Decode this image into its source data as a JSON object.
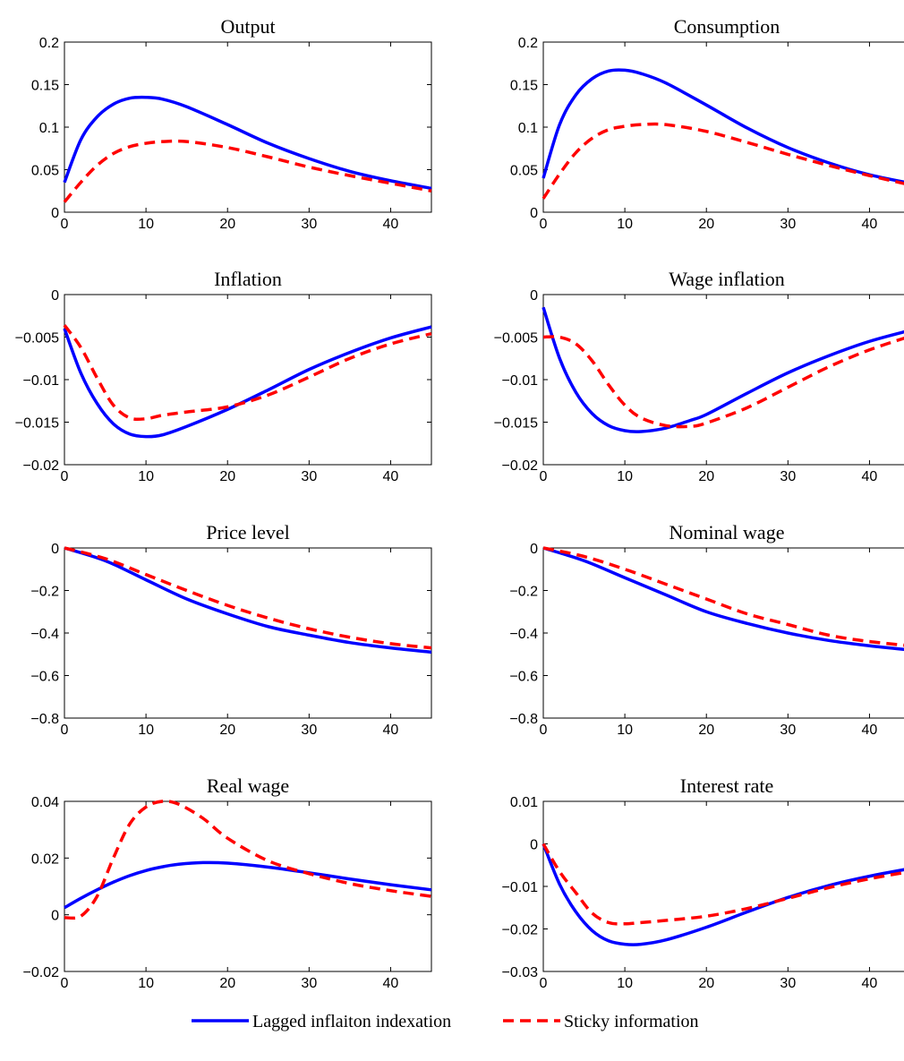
{
  "legend": {
    "placement": "bottom-center",
    "items": [
      {
        "label": "Lagged inflaiton indexation",
        "color": "#0000ff",
        "style": "solid"
      },
      {
        "label": "Sticky information",
        "color": "#ff0000",
        "style": "dashed"
      }
    ]
  },
  "chart_data": [
    {
      "type": "line",
      "title": "Output",
      "xlim": [
        0,
        45
      ],
      "ylim": [
        0,
        0.2
      ],
      "xticks": [
        0,
        10,
        20,
        30,
        40
      ],
      "xtick_labels": [
        "0",
        "10",
        "20",
        "30",
        "40"
      ],
      "yticks": [
        0,
        0.05,
        0.1,
        0.15,
        0.2
      ],
      "ytick_labels": [
        "0",
        "0.05",
        "0.1",
        "0.15",
        "0.2"
      ],
      "grid": false,
      "x": [
        0,
        2,
        4,
        6,
        8,
        10,
        12,
        15,
        20,
        25,
        30,
        35,
        40,
        45
      ],
      "series": [
        {
          "name": "Lagged inflaiton indexation",
          "values": [
            0.035,
            0.085,
            0.112,
            0.127,
            0.134,
            0.135,
            0.133,
            0.124,
            0.103,
            0.081,
            0.063,
            0.048,
            0.037,
            0.028
          ]
        },
        {
          "name": "Sticky information",
          "values": [
            0.012,
            0.035,
            0.055,
            0.069,
            0.077,
            0.081,
            0.083,
            0.083,
            0.076,
            0.065,
            0.053,
            0.043,
            0.034,
            0.025
          ]
        }
      ]
    },
    {
      "type": "line",
      "title": "Consumption",
      "xlim": [
        0,
        45
      ],
      "ylim": [
        0,
        0.2
      ],
      "xticks": [
        0,
        10,
        20,
        30,
        40
      ],
      "xtick_labels": [
        "0",
        "10",
        "20",
        "30",
        "40"
      ],
      "yticks": [
        0,
        0.05,
        0.1,
        0.15,
        0.2
      ],
      "ytick_labels": [
        "0",
        "0.05",
        "0.1",
        "0.15",
        "0.2"
      ],
      "grid": false,
      "x": [
        0,
        2,
        4,
        6,
        8,
        10,
        12,
        15,
        20,
        25,
        30,
        35,
        40,
        45
      ],
      "series": [
        {
          "name": "Lagged inflaiton indexation",
          "values": [
            0.04,
            0.103,
            0.138,
            0.157,
            0.166,
            0.167,
            0.163,
            0.152,
            0.126,
            0.099,
            0.076,
            0.058,
            0.044,
            0.034
          ]
        },
        {
          "name": "Sticky information",
          "values": [
            0.016,
            0.045,
            0.07,
            0.087,
            0.097,
            0.101,
            0.103,
            0.103,
            0.095,
            0.082,
            0.068,
            0.055,
            0.043,
            0.032
          ]
        }
      ]
    },
    {
      "type": "line",
      "title": "Inflation",
      "xlim": [
        0,
        45
      ],
      "ylim": [
        -0.02,
        0
      ],
      "xticks": [
        0,
        10,
        20,
        30,
        40
      ],
      "xtick_labels": [
        "0",
        "10",
        "20",
        "30",
        "40"
      ],
      "yticks": [
        -0.02,
        -0.015,
        -0.01,
        -0.005,
        0
      ],
      "ytick_labels": [
        "−0.02",
        "−0.015",
        "−0.01",
        "−0.005",
        "0"
      ],
      "grid": false,
      "x": [
        0,
        2,
        4,
        6,
        8,
        10,
        12,
        15,
        20,
        25,
        30,
        35,
        40,
        45
      ],
      "series": [
        {
          "name": "Lagged inflaiton indexation",
          "values": [
            -0.004,
            -0.0092,
            -0.0128,
            -0.0152,
            -0.0164,
            -0.0167,
            -0.0165,
            -0.0155,
            -0.0135,
            -0.0112,
            -0.0088,
            -0.0068,
            -0.0051,
            -0.0038
          ]
        },
        {
          "name": "Sticky information",
          "values": [
            -0.0036,
            -0.0062,
            -0.0098,
            -0.013,
            -0.0145,
            -0.0146,
            -0.0142,
            -0.0138,
            -0.0132,
            -0.0118,
            -0.0097,
            -0.0075,
            -0.0058,
            -0.0046
          ]
        }
      ]
    },
    {
      "type": "line",
      "title": "Wage inflation",
      "xlim": [
        0,
        45
      ],
      "ylim": [
        -0.02,
        0
      ],
      "xticks": [
        0,
        10,
        20,
        30,
        40
      ],
      "xtick_labels": [
        "0",
        "10",
        "20",
        "30",
        "40"
      ],
      "yticks": [
        -0.02,
        -0.015,
        -0.01,
        -0.005,
        0
      ],
      "ytick_labels": [
        "−0.02",
        "−0.015",
        "−0.01",
        "−0.005",
        "0"
      ],
      "grid": false,
      "x": [
        0,
        2,
        4,
        6,
        8,
        10,
        12,
        15,
        18,
        20,
        25,
        30,
        35,
        40,
        45
      ],
      "series": [
        {
          "name": "Lagged inflaiton indexation",
          "values": [
            -0.0015,
            -0.0075,
            -0.0115,
            -0.014,
            -0.0154,
            -0.016,
            -0.0161,
            -0.0157,
            -0.0148,
            -0.0141,
            -0.0116,
            -0.0092,
            -0.0072,
            -0.0055,
            -0.0042
          ]
        },
        {
          "name": "Sticky information",
          "values": [
            -0.005,
            -0.005,
            -0.0058,
            -0.0078,
            -0.0106,
            -0.013,
            -0.0145,
            -0.0154,
            -0.0155,
            -0.0151,
            -0.0133,
            -0.0109,
            -0.0085,
            -0.0065,
            -0.0049
          ]
        }
      ]
    },
    {
      "type": "line",
      "title": "Price level",
      "xlim": [
        0,
        45
      ],
      "ylim": [
        -0.8,
        0
      ],
      "xticks": [
        0,
        10,
        20,
        30,
        40
      ],
      "xtick_labels": [
        "0",
        "10",
        "20",
        "30",
        "40"
      ],
      "yticks": [
        -0.8,
        -0.6,
        -0.4,
        -0.2,
        0
      ],
      "ytick_labels": [
        "−0.8",
        "−0.6",
        "−0.4",
        "−0.2",
        "0"
      ],
      "grid": false,
      "x": [
        0,
        5,
        10,
        15,
        20,
        25,
        30,
        35,
        40,
        45
      ],
      "series": [
        {
          "name": "Lagged inflaiton indexation",
          "values": [
            0,
            -0.06,
            -0.15,
            -0.24,
            -0.31,
            -0.37,
            -0.41,
            -0.445,
            -0.47,
            -0.49
          ]
        },
        {
          "name": "Sticky information",
          "values": [
            0,
            -0.05,
            -0.125,
            -0.2,
            -0.27,
            -0.33,
            -0.38,
            -0.42,
            -0.45,
            -0.47
          ]
        }
      ]
    },
    {
      "type": "line",
      "title": "Nominal wage",
      "xlim": [
        0,
        45
      ],
      "ylim": [
        -0.8,
        0
      ],
      "xticks": [
        0,
        10,
        20,
        30,
        40
      ],
      "xtick_labels": [
        "0",
        "10",
        "20",
        "30",
        "40"
      ],
      "yticks": [
        -0.8,
        -0.6,
        -0.4,
        -0.2,
        0
      ],
      "ytick_labels": [
        "−0.8",
        "−0.6",
        "−0.4",
        "−0.2",
        "0"
      ],
      "grid": false,
      "x": [
        0,
        5,
        10,
        15,
        20,
        25,
        30,
        35,
        40,
        45
      ],
      "series": [
        {
          "name": "Lagged inflaiton indexation",
          "values": [
            0,
            -0.06,
            -0.14,
            -0.22,
            -0.3,
            -0.355,
            -0.4,
            -0.435,
            -0.46,
            -0.48
          ]
        },
        {
          "name": "Sticky information",
          "values": [
            0,
            -0.04,
            -0.1,
            -0.17,
            -0.24,
            -0.31,
            -0.36,
            -0.41,
            -0.44,
            -0.46
          ]
        }
      ]
    },
    {
      "type": "line",
      "title": "Real wage",
      "xlim": [
        0,
        45
      ],
      "ylim": [
        -0.02,
        0.04
      ],
      "xticks": [
        0,
        10,
        20,
        30,
        40
      ],
      "xtick_labels": [
        "0",
        "10",
        "20",
        "30",
        "40"
      ],
      "yticks": [
        -0.02,
        0,
        0.02,
        0.04
      ],
      "ytick_labels": [
        "−0.02",
        "0",
        "0.02",
        "0.04"
      ],
      "grid": false,
      "x": [
        0,
        2,
        4,
        6,
        8,
        10,
        12,
        14,
        17,
        20,
        25,
        30,
        35,
        40,
        45
      ],
      "series": [
        {
          "name": "Lagged inflaiton indexation",
          "values": [
            0.0025,
            0.0058,
            0.0088,
            0.0115,
            0.0138,
            0.0156,
            0.0169,
            0.0178,
            0.0184,
            0.0182,
            0.0168,
            0.0148,
            0.0126,
            0.0106,
            0.0088
          ]
        },
        {
          "name": "Sticky information",
          "values": [
            -0.001,
            -0.0005,
            0.0065,
            0.02,
            0.032,
            0.038,
            0.04,
            0.039,
            0.034,
            0.027,
            0.019,
            0.0145,
            0.011,
            0.0085,
            0.0065
          ]
        }
      ]
    },
    {
      "type": "line",
      "title": "Interest rate",
      "xlim": [
        0,
        45
      ],
      "ylim": [
        -0.03,
        0.01
      ],
      "xticks": [
        0,
        10,
        20,
        30,
        40
      ],
      "xtick_labels": [
        "0",
        "10",
        "20",
        "30",
        "40"
      ],
      "yticks": [
        -0.03,
        -0.02,
        -0.01,
        0,
        0.01
      ],
      "ytick_labels": [
        "−0.03",
        "−0.02",
        "−0.01",
        "0",
        "0.01"
      ],
      "grid": false,
      "x": [
        0,
        2,
        4,
        6,
        8,
        10,
        12,
        15,
        20,
        25,
        30,
        35,
        40,
        45
      ],
      "series": [
        {
          "name": "Lagged inflaiton indexation",
          "values": [
            0,
            -0.0095,
            -0.016,
            -0.0204,
            -0.0228,
            -0.0236,
            -0.0236,
            -0.0226,
            -0.0196,
            -0.016,
            -0.0126,
            -0.0098,
            -0.0076,
            -0.0058
          ]
        },
        {
          "name": "Sticky information",
          "values": [
            0,
            -0.0065,
            -0.0115,
            -0.0163,
            -0.0185,
            -0.0188,
            -0.0185,
            -0.018,
            -0.017,
            -0.0152,
            -0.0128,
            -0.0103,
            -0.0082,
            -0.0065
          ]
        }
      ]
    }
  ]
}
